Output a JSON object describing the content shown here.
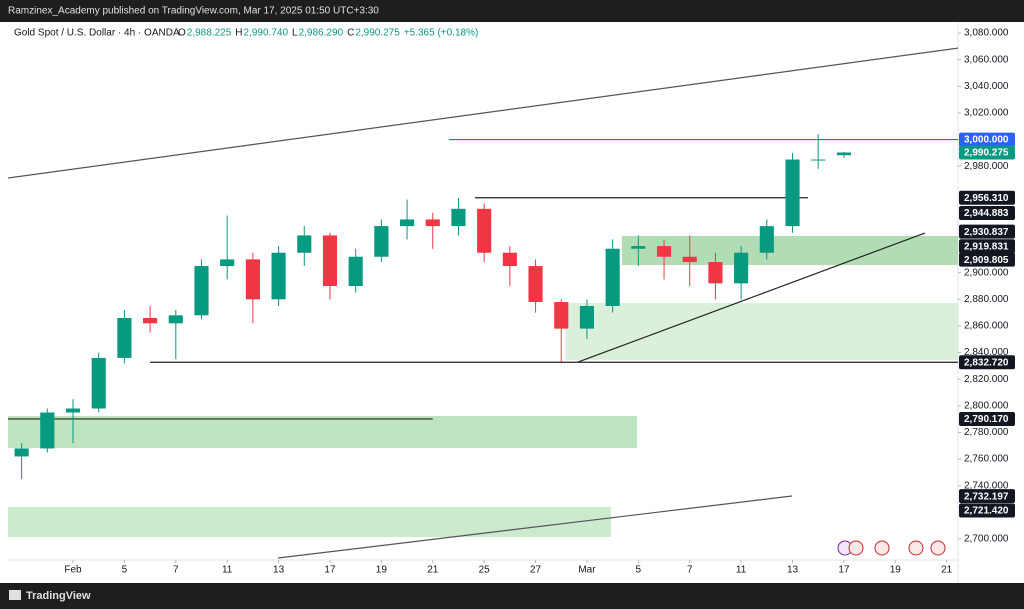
{
  "top_bar": {
    "text": "Ramzinex_Academy published on TradingView.com, Mar 17, 2025 01:50 UTC+3:30"
  },
  "footer": {
    "brand": "TradingView"
  },
  "chart_data": {
    "type": "candlestick",
    "title": "Gold Spot / U.S. Dollar · 4h · OANDA",
    "ohlc_header": [
      {
        "key": "O",
        "value": "2,988.225"
      },
      {
        "key": "H",
        "value": "2,990.740"
      },
      {
        "key": "L",
        "value": "2,986.290"
      },
      {
        "key": "C",
        "value": "2,990.275"
      }
    ],
    "change": "+5.365 (+0.18%)",
    "x": [
      -2,
      -1,
      0,
      1,
      2,
      3,
      4,
      5,
      6,
      7,
      8,
      9,
      10,
      11,
      12,
      13,
      14,
      15,
      16,
      17,
      18,
      19,
      20,
      21,
      22,
      23,
      24,
      25,
      26,
      27,
      28,
      29,
      30
    ],
    "open": [
      2762,
      2768,
      2795,
      2798,
      2836,
      2866,
      2862,
      2868,
      2905,
      2910,
      2880,
      2915,
      2928,
      2890,
      2912,
      2935,
      2940,
      2935,
      2948,
      2915,
      2905,
      2878,
      2858,
      2875,
      2918,
      2920,
      2912,
      2908,
      2892,
      2915,
      2935,
      2985,
      2988.225
    ],
    "high": [
      2772,
      2798,
      2805,
      2840,
      2872,
      2875,
      2872,
      2910,
      2943,
      2915,
      2920,
      2935,
      2930,
      2918,
      2940,
      2955,
      2945,
      2956,
      2952,
      2920,
      2910,
      2880,
      2880,
      2925,
      2928,
      2925,
      2928,
      2915,
      2920,
      2940,
      2990,
      3004,
      2990.74
    ],
    "low": [
      2745,
      2765,
      2772,
      2795,
      2832,
      2855,
      2835,
      2865,
      2895,
      2862,
      2875,
      2905,
      2880,
      2885,
      2908,
      2925,
      2918,
      2928,
      2908,
      2890,
      2870,
      2833,
      2850,
      2870,
      2905,
      2895,
      2890,
      2880,
      2880,
      2910,
      2930,
      2978,
      2986.29
    ],
    "close": [
      2768,
      2795,
      2798,
      2836,
      2866,
      2862,
      2868,
      2905,
      2910,
      2880,
      2915,
      2928,
      2890,
      2912,
      2935,
      2940,
      2935,
      2948,
      2915,
      2905,
      2878,
      2858,
      2875,
      2918,
      2920,
      2912,
      2908,
      2892,
      2915,
      2935,
      2985,
      2985,
      2990.275
    ],
    "up_color": "#089981",
    "down_color": "#f23645",
    "xlim": [
      -2.53,
      34.44
    ],
    "ylim": [
      2669.2,
      3088.3
    ],
    "xticks": [
      {
        "value": 0,
        "label": "Feb"
      },
      {
        "value": 2,
        "label": "5"
      },
      {
        "value": 4,
        "label": "7"
      },
      {
        "value": 6,
        "label": "11"
      },
      {
        "value": 8,
        "label": "13"
      },
      {
        "value": 10,
        "label": "17"
      },
      {
        "value": 12,
        "label": "19"
      },
      {
        "value": 14,
        "label": "21"
      },
      {
        "value": 16,
        "label": "25"
      },
      {
        "value": 18,
        "label": "27"
      },
      {
        "value": 20,
        "label": "Mar"
      },
      {
        "value": 22,
        "label": "5"
      },
      {
        "value": 24,
        "label": "7"
      },
      {
        "value": 26,
        "label": "11"
      },
      {
        "value": 28,
        "label": "13"
      },
      {
        "value": 30,
        "label": "17"
      },
      {
        "value": 32,
        "label": "19"
      },
      {
        "value": 34,
        "label": "21"
      }
    ],
    "yticks": [
      {
        "value": 3080,
        "label": "3,080.000"
      },
      {
        "value": 3060,
        "label": "3,060.000"
      },
      {
        "value": 3040,
        "label": "3,040.000"
      },
      {
        "value": 3020,
        "label": "3,020.000"
      },
      {
        "value": 2980,
        "label": "2,980.000"
      },
      {
        "value": 2900,
        "label": "2,900.000"
      },
      {
        "value": 2880,
        "label": "2,880.000"
      },
      {
        "value": 2860,
        "label": "2,860.000"
      },
      {
        "value": 2840,
        "label": "2,840.000"
      },
      {
        "value": 2820,
        "label": "2,820.000"
      },
      {
        "value": 2800,
        "label": "2,800.000"
      },
      {
        "value": 2780,
        "label": "2,780.000"
      },
      {
        "value": 2760,
        "label": "2,760.000"
      },
      {
        "value": 2740,
        "label": "2,740.000"
      },
      {
        "value": 2700,
        "label": "2,700.000"
      }
    ],
    "zones": [
      {
        "x": [
          21.36,
          34.44
        ],
        "y": [
          2905.8,
          2927.6
        ],
        "color": "#a5d6a7"
      },
      {
        "x": [
          19.18,
          34.44
        ],
        "y": [
          2834.4,
          2877.2
        ],
        "color": "#d4edd4"
      },
      {
        "x": [
          -2.53,
          21.95
        ],
        "y": [
          2768.3,
          2792.4
        ],
        "color": "#b2dfb4"
      },
      {
        "x": [
          -2.53,
          20.93
        ],
        "y": [
          2701.5,
          2724.0
        ],
        "color": "#c3e6c5"
      }
    ],
    "drawings": [
      {
        "x": [
          -2.53,
          34.44
        ],
        "y": [
          2971.1,
          3068.7
        ],
        "color": "#555555"
      },
      {
        "x": [
          7.98,
          27.98
        ],
        "y": [
          2685.7,
          2732.3
        ],
        "color": "#555555"
      },
      {
        "x": [
          19.65,
          33.15
        ],
        "y": [
          2832.9,
          2929.8
        ],
        "color": "#222222"
      },
      {
        "x": [
          3.0,
          34.44
        ],
        "y": [
          2832.72,
          2832.72
        ],
        "color": "#222222"
      },
      {
        "x": [
          15.64,
          28.6
        ],
        "y": [
          2956.31,
          2956.31
        ],
        "color": "#222222"
      },
      {
        "x": [
          -2.53,
          14.0
        ],
        "y": [
          2790.17,
          2790.17
        ],
        "color": "#222222"
      },
      {
        "x": [
          14.63,
          34.44
        ],
        "y": [
          3000,
          3000
        ],
        "color": "#2962ff"
      }
    ],
    "price_labels": [
      {
        "value": 3000,
        "label": "3,000.000",
        "color": "#2962ff"
      },
      {
        "value": 2990.275,
        "label": "2,990.275",
        "color": "#089981"
      },
      {
        "value": 2956.31,
        "label": "2,956.310",
        "color": "#131722"
      },
      {
        "value": 2944.883,
        "label": "2,944.883",
        "color": "#131722"
      },
      {
        "value": 2930.837,
        "label": "2,930.837",
        "color": "#131722"
      },
      {
        "value": 2919.831,
        "label": "2,919.831",
        "color": "#131722"
      },
      {
        "value": 2909.805,
        "label": "2,909.805",
        "color": "#131722"
      },
      {
        "value": 2832.72,
        "label": "2,832.720",
        "color": "#131722"
      },
      {
        "value": 2790.17,
        "label": "2,790.170",
        "color": "#131722"
      },
      {
        "value": 2732.197,
        "label": "2,732.197",
        "color": "#131722"
      },
      {
        "value": 2721.42,
        "label": "2,721.420",
        "color": "#131722"
      }
    ]
  }
}
